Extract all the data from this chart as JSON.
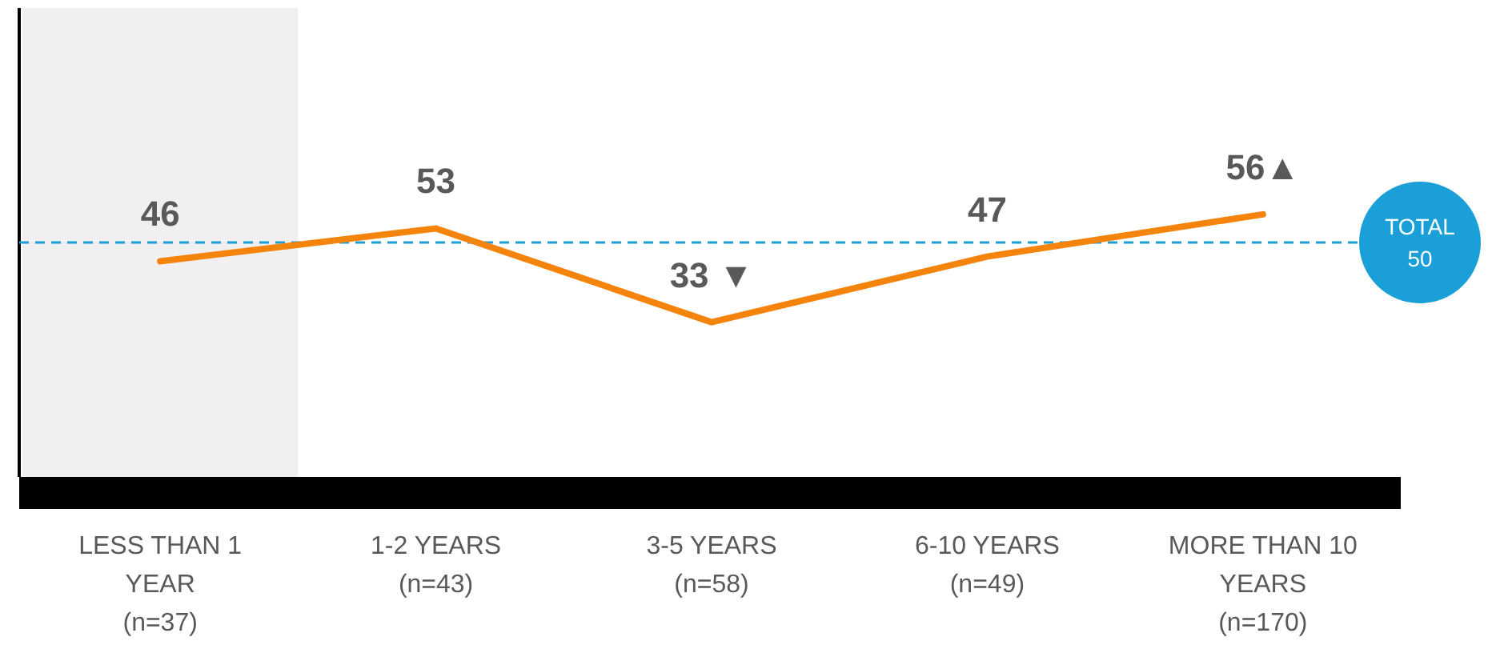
{
  "chart_data": {
    "type": "line",
    "categories": [
      "LESS THAN 1 YEAR (n=37)",
      "1-2 YEARS (n=43)",
      "3-5 YEARS (n=58)",
      "6-10 YEARS (n=49)",
      "MORE THAN 10 YEARS (n=170)"
    ],
    "series": [
      {
        "color": "#f5840c",
        "values": [
          46,
          53,
          33,
          47,
          56
        ],
        "value_labels": [
          "46",
          "53",
          "33 ▼",
          "47",
          "56▲"
        ]
      }
    ],
    "ylim": [
      0,
      100
    ],
    "tick_labels": "x",
    "marker": "none",
    "line_style": "solid",
    "ref_lines": [
      {
        "axis": "y",
        "value": 50,
        "label": "TOTAL 50",
        "color": "#1a9fd9",
        "line_style": "dashed"
      }
    ],
    "bands": [
      {
        "axis": "x",
        "from": "LESS THAN 1 YEAR (n=37)",
        "to": "LESS THAN 1 YEAR (n=37)",
        "color": "#f0f0f0"
      }
    ]
  }
}
